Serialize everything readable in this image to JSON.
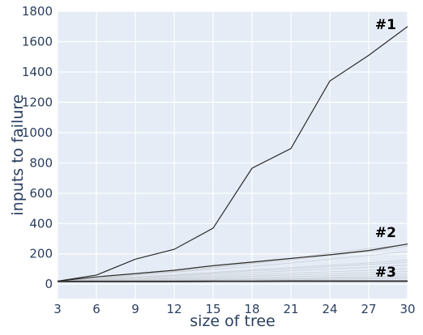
{
  "chart_data": {
    "type": "line",
    "xlabel": "size of tree",
    "ylabel": "inputs to failure",
    "x": [
      3,
      6,
      9,
      12,
      15,
      18,
      21,
      24,
      27,
      30
    ],
    "xticks": [
      "3",
      "6",
      "9",
      "12",
      "15",
      "18",
      "21",
      "24",
      "27",
      "30"
    ],
    "yticks": [
      "0",
      "200",
      "400",
      "600",
      "800",
      "1000",
      "1200",
      "1400",
      "1600",
      "1800"
    ],
    "xlim": [
      3,
      30
    ],
    "ylim": [
      -95,
      1800
    ],
    "grid": true,
    "colors": {
      "plot_bg": "#e5ecf6",
      "grid": "#ffffff",
      "series_line": "#2b2b2b",
      "background_lines": "#c8ccd2",
      "text": "#2a3f5f"
    },
    "series": [
      {
        "name": "#1",
        "values": [
          20,
          60,
          165,
          230,
          370,
          765,
          895,
          1340,
          1510,
          1700
        ]
      },
      {
        "name": "#2",
        "values": [
          20,
          48,
          70,
          92,
          122,
          146,
          170,
          194,
          222,
          265
        ]
      },
      {
        "name": "#3",
        "values": [
          18,
          18,
          18,
          18,
          19,
          19,
          20,
          20,
          20,
          20
        ]
      }
    ],
    "background_series": [
      [
        20,
        35,
        60,
        82,
        110,
        135,
        160,
        190,
        215,
        250
      ],
      [
        20,
        38,
        60,
        80,
        98,
        118,
        140,
        165,
        190,
        215
      ],
      [
        20,
        40,
        62,
        85,
        110,
        140,
        170,
        205,
        235,
        260
      ],
      [
        20,
        32,
        48,
        62,
        78,
        95,
        110,
        125,
        140,
        160
      ],
      [
        20,
        30,
        45,
        58,
        72,
        88,
        100,
        115,
        130,
        145
      ],
      [
        20,
        28,
        40,
        52,
        64,
        76,
        88,
        100,
        112,
        125
      ],
      [
        20,
        26,
        34,
        44,
        54,
        63,
        72,
        82,
        92,
        102
      ],
      [
        20,
        24,
        30,
        38,
        46,
        53,
        60,
        68,
        76,
        84
      ],
      [
        20,
        22,
        26,
        32,
        38,
        44,
        50,
        56,
        62,
        68
      ],
      [
        18,
        21,
        24,
        28,
        32,
        36,
        40,
        45,
        50,
        55
      ],
      [
        18,
        20,
        22,
        25,
        28,
        31,
        34,
        38,
        42,
        46
      ],
      [
        18,
        19,
        21,
        23,
        25,
        27,
        29,
        32,
        35,
        38
      ]
    ]
  }
}
